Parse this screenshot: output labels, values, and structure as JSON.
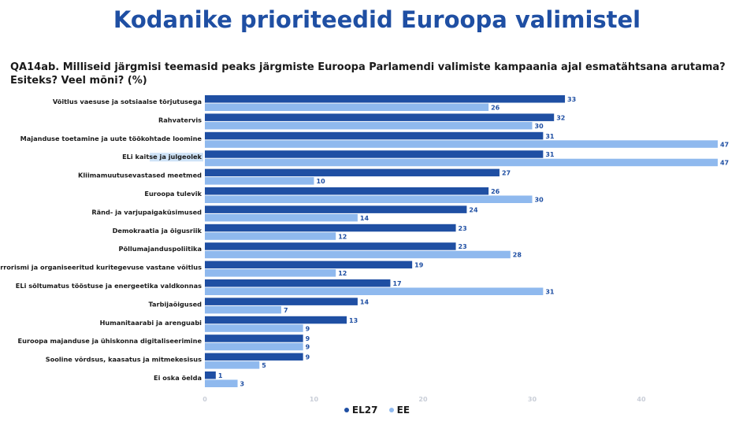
{
  "page": {
    "title": "Kodanike prioriteedid Euroopa valimistel",
    "question": "QA14ab. Milliseid järgmisi teemasid peaks järgmiste Euroopa Parlamendi valimiste kampaania ajal esmatähtsana arutama? Esiteks? Veel mõni? (%)"
  },
  "colors": {
    "EL27": "#1f4fa3",
    "EE": "#8fb9ee",
    "highlight": "#cfe3f7"
  },
  "chart_data": {
    "type": "bar",
    "orientation": "horizontal",
    "categories": [
      "Võitlus vaesuse ja sotsiaalse tõrjutusega",
      "Rahvatervis",
      "Majanduse toetamine ja uute töökohtade loomine",
      "ELi kaitse ja julgeolek",
      "Kliimamuutusevastased meetmed",
      "Euroopa tulevik",
      "Ränd- ja varjupaigaküsimused",
      "Demokraatia ja õigusriik",
      "Põllumajanduspoliitika",
      "Terrorismi ja organiseeritud kuritegevuse vastane võitlus",
      "ELi sõltumatus tööstuse ja energeetika valdkonnas",
      "Tarbijaõigused",
      "Humanitaarabi ja arenguabi",
      "Euroopa majanduse ja ühiskonna digitaliseerimine",
      "Sooline võrdsus, kaasatus ja mitmekesisus",
      "Ei oska öelda"
    ],
    "series": [
      {
        "name": "EL27",
        "values": [
          33,
          32,
          31,
          31,
          27,
          26,
          24,
          23,
          23,
          19,
          17,
          14,
          13,
          9,
          9,
          1
        ]
      },
      {
        "name": "EE",
        "values": [
          26,
          30,
          47,
          47,
          10,
          30,
          14,
          12,
          28,
          12,
          31,
          7,
          9,
          9,
          5,
          3
        ]
      }
    ],
    "highlighted_category": "ELi kaitse ja julgeolek",
    "xticks": [
      0,
      10,
      20,
      30,
      40
    ],
    "xlim": [
      0,
      50
    ],
    "legend_position": "bottom"
  }
}
